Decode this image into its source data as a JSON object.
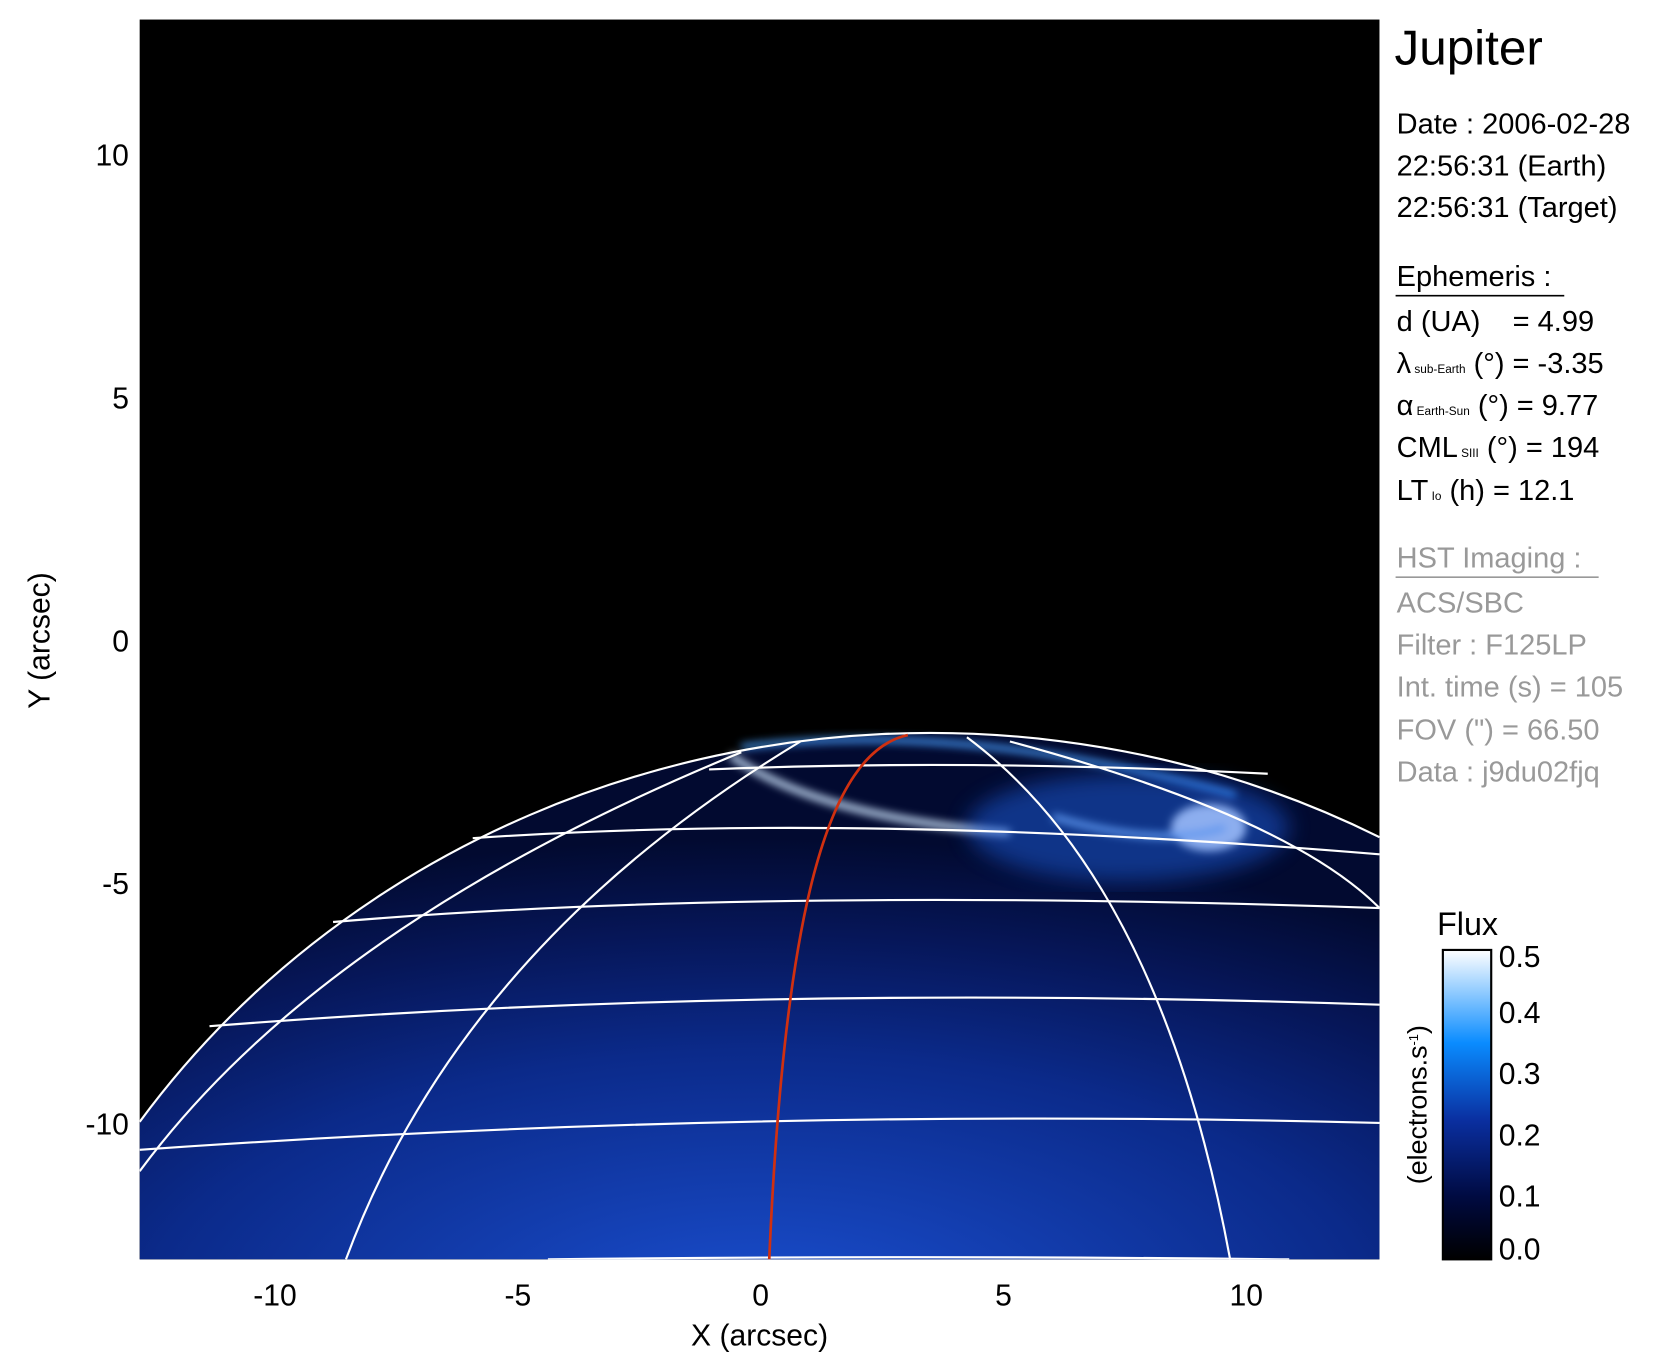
{
  "chart_data": {
    "type": "heatmap",
    "title": "Jupiter",
    "xlabel": "X (arcsec)",
    "ylabel": "Y (arcsec)",
    "xlim": [
      -12.8,
      12.8
    ],
    "ylim": [
      -12.8,
      12.8
    ],
    "x_ticks": [
      "-10",
      "-5",
      "0",
      "5",
      "10"
    ],
    "y_ticks": [
      "10",
      "5",
      "0",
      "-5",
      "-10"
    ],
    "grid": false,
    "colormap": [
      "#000000",
      "#000a40",
      "#0a2fa0",
      "#0a8cff",
      "#ffffff"
    ],
    "overlay_colors": {
      "grid": "#ffffff",
      "meridian": "#d03010"
    },
    "colorbar": {
      "title": "Flux",
      "label": "(electrons.s",
      "label_sup": "-1",
      "label_end": ")",
      "range": [
        0.0,
        0.5
      ],
      "ticks": [
        "0.0",
        "0.1",
        "0.2",
        "0.3",
        "0.4",
        "0.5"
      ]
    }
  },
  "info": {
    "target": "Jupiter",
    "date": "Date : 2006-02-28",
    "time_earth": "22:56:31 (Earth)",
    "time_target": "22:56:31 (Target)",
    "ephemeris_header": "Ephemeris :",
    "d": "d (UA)    = 4.99",
    "lambda_sym": "λ",
    "lambda_sub": "sub-Earth",
    "lambda_val": " (°) = -3.35",
    "alpha_sym": "α",
    "alpha_sub": "Earth-Sun",
    "alpha_val": " (°) = 9.77",
    "cml_sym": "CML",
    "cml_sub": "SIII",
    "cml_val": " (°) = 194",
    "lt_sym": "LT",
    "lt_sub": "Io",
    "lt_val": " (h) = 12.1",
    "hst_header": "HST Imaging :",
    "instrument": "ACS/SBC",
    "filter": "Filter : F125LP",
    "int_time": "Int. time (s) = 105",
    "fov": "FOV (\") = 66.50",
    "data_id": "Data : j9du02fjq"
  }
}
